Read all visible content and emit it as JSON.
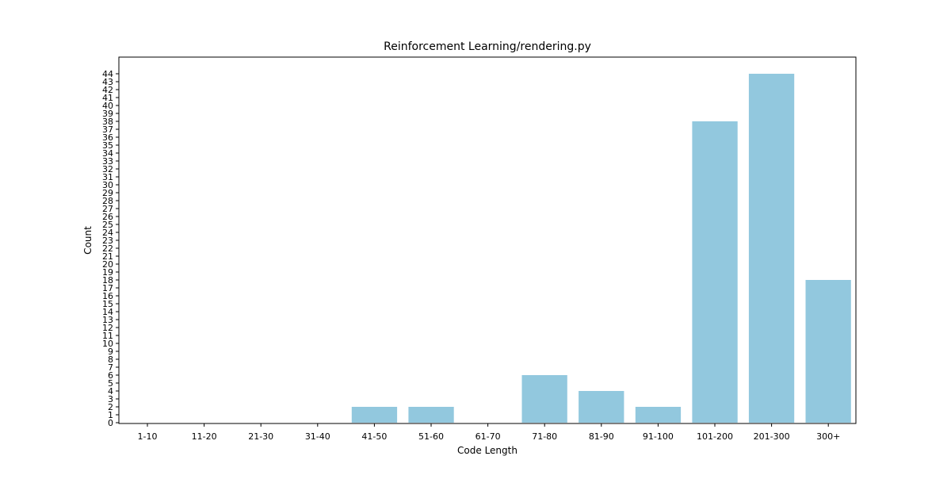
{
  "chart_data": {
    "type": "bar",
    "title": "Reinforcement Learning/rendering.py",
    "xlabel": "Code Length",
    "ylabel": "Count",
    "categories": [
      "1-10",
      "11-20",
      "21-30",
      "31-40",
      "41-50",
      "51-60",
      "61-70",
      "71-80",
      "81-90",
      "91-100",
      "101-200",
      "201-300",
      "300+"
    ],
    "values": [
      0,
      0,
      0,
      0,
      2,
      2,
      0,
      6,
      4,
      2,
      38,
      44,
      18
    ],
    "ylim": [
      0,
      46
    ],
    "yticks": [
      0,
      1,
      2,
      3,
      4,
      5,
      6,
      7,
      8,
      9,
      10,
      11,
      12,
      13,
      14,
      15,
      16,
      17,
      18,
      19,
      20,
      21,
      22,
      23,
      24,
      25,
      26,
      27,
      28,
      29,
      30,
      31,
      32,
      33,
      34,
      35,
      36,
      37,
      38,
      39,
      40,
      41,
      42,
      43,
      44
    ],
    "bar_color": "#92c8de",
    "grid": false,
    "legend": "none"
  }
}
